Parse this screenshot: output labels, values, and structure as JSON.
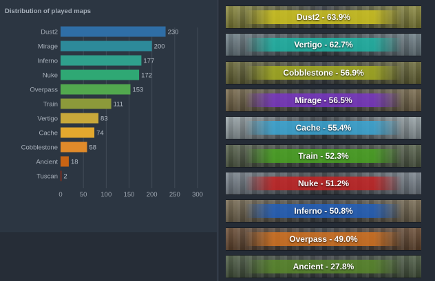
{
  "chart_data": {
    "type": "bar",
    "orientation": "horizontal",
    "title": "Distribution of played maps",
    "categories": [
      "Dust2",
      "Mirage",
      "Inferno",
      "Nuke",
      "Overpass",
      "Train",
      "Vertigo",
      "Cache",
      "Cobblestone",
      "Ancient",
      "Tuscan"
    ],
    "values": [
      230,
      200,
      177,
      172,
      153,
      111,
      83,
      74,
      58,
      18,
      2
    ],
    "colors": [
      "#2f6ea6",
      "#2d8a9a",
      "#2fa08c",
      "#2fa874",
      "#52a84e",
      "#8c9a3a",
      "#c8a83a",
      "#e3a82e",
      "#e08a2a",
      "#c86414",
      "#a82a0e"
    ],
    "xlim": [
      0,
      300
    ],
    "xticks": [
      0,
      50,
      100,
      150,
      200,
      250,
      300
    ],
    "xlabel": "",
    "ylabel": "",
    "grid": true,
    "legend": "none"
  },
  "win_rates": [
    {
      "map": "Dust2",
      "text": "Dust2 - 63.9%",
      "percent": 63.9,
      "base": "#8c8a3a",
      "overlay": "#d4c81e"
    },
    {
      "map": "Vertigo",
      "text": "Vertigo - 62.7%",
      "percent": 62.7,
      "base": "#6f8088",
      "overlay": "#1cb8a8"
    },
    {
      "map": "Cobblestone",
      "text": "Cobblestone - 56.9%",
      "percent": 56.9,
      "base": "#6c6a36",
      "overlay": "#a8b020"
    },
    {
      "map": "Mirage",
      "text": "Mirage - 56.5%",
      "percent": 56.5,
      "base": "#7a6a4a",
      "overlay": "#7a34c8"
    },
    {
      "map": "Cache",
      "text": "Cache - 55.4%",
      "percent": 55.4,
      "base": "#9aa6aa",
      "overlay": "#38a8d8"
    },
    {
      "map": "Train",
      "text": "Train - 52.3%",
      "percent": 52.3,
      "base": "#556048",
      "overlay": "#4aa820"
    },
    {
      "map": "Nuke",
      "text": "Nuke - 51.2%",
      "percent": 51.2,
      "base": "#7c8690",
      "overlay": "#c82020"
    },
    {
      "map": "Inferno",
      "text": "Inferno - 50.8%",
      "percent": 50.8,
      "base": "#786a50",
      "overlay": "#2060c0"
    },
    {
      "map": "Overpass",
      "text": "Overpass - 49.0%",
      "percent": 49.0,
      "base": "#6a4a30",
      "overlay": "#d87420"
    },
    {
      "map": "Ancient",
      "text": "Ancient - 27.8%",
      "percent": 27.8,
      "base": "#4a5a40",
      "overlay": "#5a8a2a"
    }
  ]
}
